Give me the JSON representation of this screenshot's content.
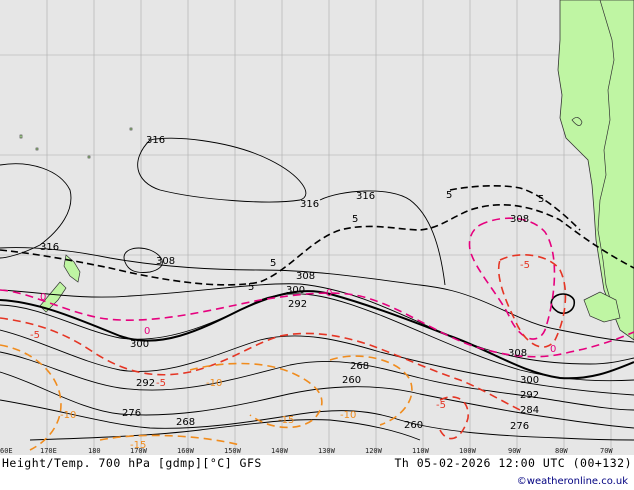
{
  "map": {
    "title_left": "Height/Temp. 700 hPa [gdmp][°C] GFS",
    "title_right": "Th 05-02-2026 12:00 UTC (00+132)",
    "credit": "©weatheronline.co.uk",
    "longitude_ticks": [
      "60E",
      "170E",
      "180",
      "170W",
      "160W",
      "150W",
      "140W",
      "130W",
      "120W",
      "110W",
      "100W",
      "90W",
      "80W",
      "70W"
    ],
    "height_contour_labels": [
      "316",
      "316",
      "316",
      "316",
      "308",
      "308",
      "308",
      "308",
      "300",
      "300",
      "300",
      "292",
      "292",
      "292",
      "284",
      "276",
      "276",
      "268",
      "268",
      "260",
      "260"
    ],
    "temp_labels": [
      "5",
      "5",
      "5",
      "5",
      "5",
      "0",
      "0",
      "0",
      "0",
      "-5",
      "-5",
      "-5",
      "-5",
      "-10",
      "-10",
      "-10",
      "-15",
      "-15"
    ],
    "colors": {
      "land": "#bff5a3",
      "sea": "#e6e6e6",
      "height_contour": "#000000",
      "temp_positive": "#000000",
      "temp_zero": "#e6007e",
      "temp_minus5": "#e53524",
      "temp_minus10": "#f08c1e"
    }
  }
}
